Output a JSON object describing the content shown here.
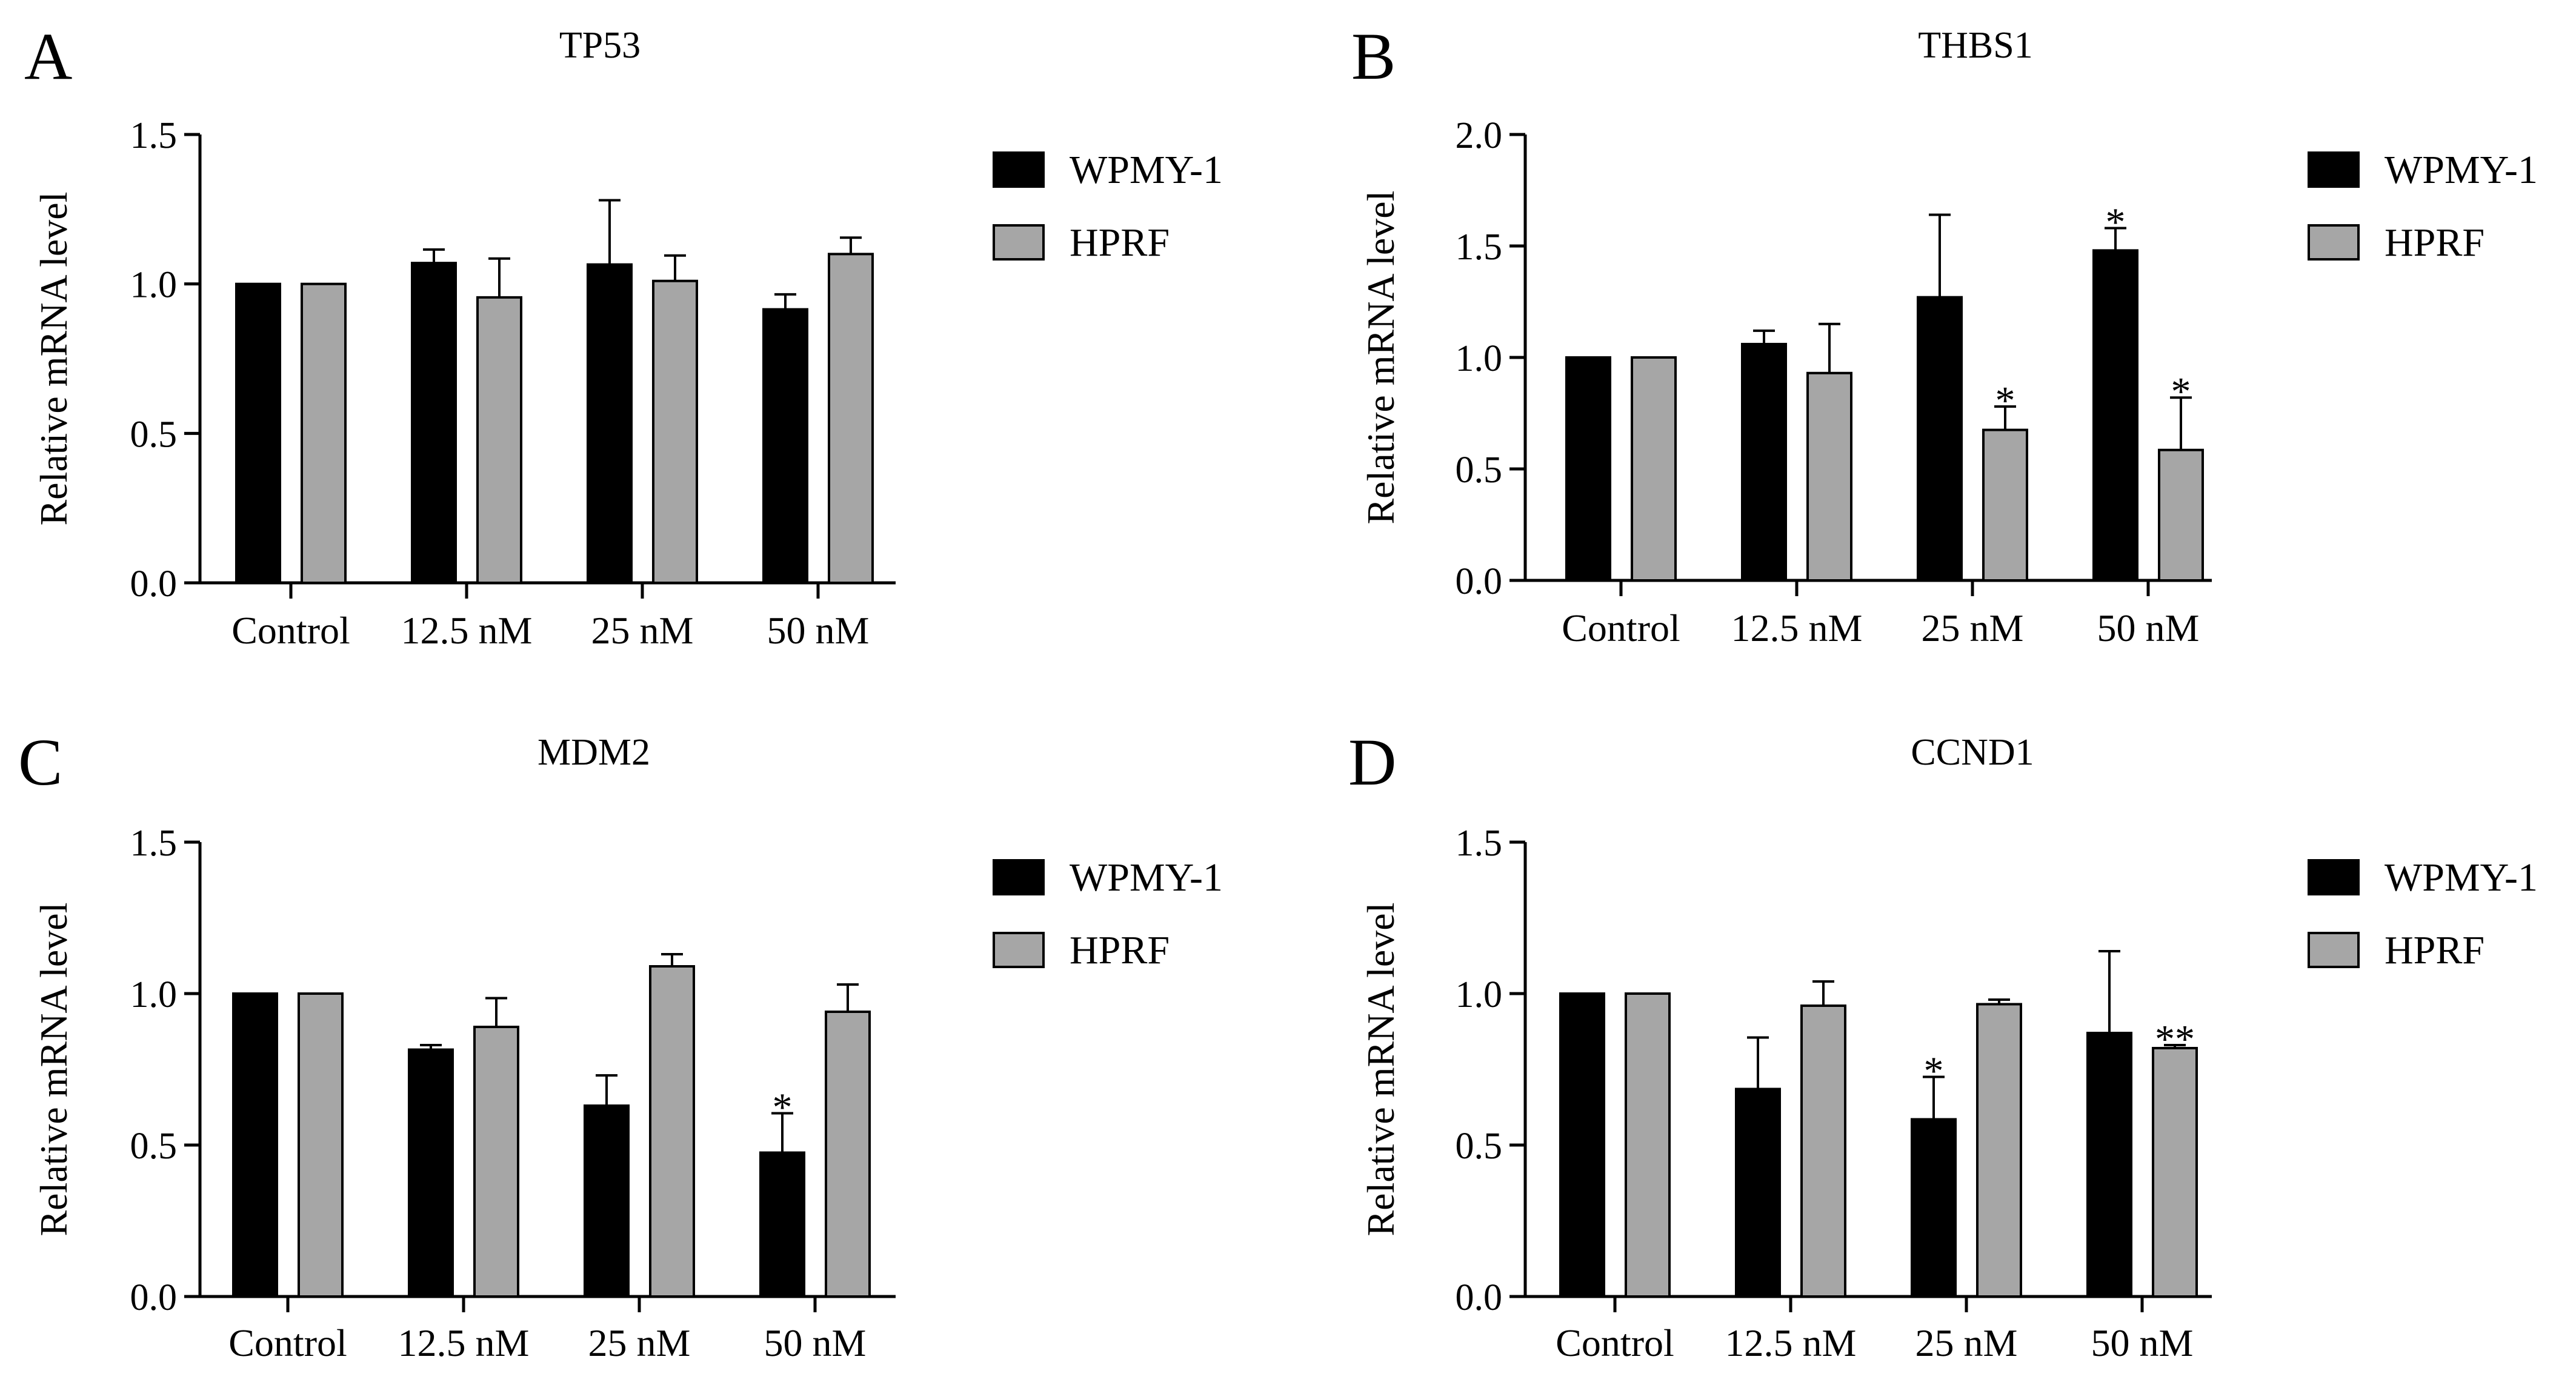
{
  "chart_data": [
    {
      "panel": "A",
      "type": "bar",
      "title": "TP53",
      "ylabel": "Relative mRNA level",
      "xlabel": "",
      "ylim": [
        0,
        1.5
      ],
      "yticks": [
        "0.0",
        "0.5",
        "1.0",
        "1.5"
      ],
      "categories": [
        "Control",
        "12.5 nM",
        "25 nM",
        "50 nM"
      ],
      "legend_position": "right",
      "series": [
        {
          "name": "WPMY-1",
          "color": "#000000",
          "values": [
            1.0,
            1.07,
            1.065,
            0.915
          ],
          "errors": [
            0,
            0.045,
            0.215,
            0.05
          ],
          "sig": [
            "",
            "",
            "",
            ""
          ]
        },
        {
          "name": "HPRF",
          "color": "#a6a6a6",
          "values": [
            1.0,
            0.955,
            1.01,
            1.1
          ],
          "errors": [
            0,
            0.13,
            0.085,
            0.055
          ],
          "sig": [
            "",
            "",
            "",
            ""
          ]
        }
      ]
    },
    {
      "panel": "B",
      "type": "bar",
      "title": "THBS1",
      "ylabel": "Relative mRNA level",
      "xlabel": "",
      "ylim": [
        0,
        2.0
      ],
      "yticks": [
        "0.0",
        "0.5",
        "1.0",
        "1.5",
        "2.0"
      ],
      "categories": [
        "Control",
        "12.5 nM",
        "25 nM",
        "50 nM"
      ],
      "legend_position": "right",
      "series": [
        {
          "name": "WPMY-1",
          "color": "#000000",
          "values": [
            1.0,
            1.06,
            1.27,
            1.48
          ],
          "errors": [
            0,
            0.06,
            0.37,
            0.1
          ],
          "sig": [
            "",
            "",
            "",
            "*"
          ]
        },
        {
          "name": "HPRF",
          "color": "#a6a6a6",
          "values": [
            1.0,
            0.93,
            0.675,
            0.585
          ],
          "errors": [
            0,
            0.22,
            0.105,
            0.235
          ],
          "sig": [
            "",
            "",
            "*",
            "*"
          ]
        }
      ]
    },
    {
      "panel": "C",
      "type": "bar",
      "title": "MDM2",
      "ylabel": "Relative mRNA level",
      "xlabel": "",
      "ylim": [
        0,
        1.5
      ],
      "yticks": [
        "0.0",
        "0.5",
        "1.0",
        "1.5"
      ],
      "categories": [
        "Control",
        "12.5 nM",
        "25 nM",
        "50 nM"
      ],
      "legend_position": "right",
      "series": [
        {
          "name": "WPMY-1",
          "color": "#000000",
          "values": [
            1.0,
            0.815,
            0.63,
            0.475
          ],
          "errors": [
            0,
            0.015,
            0.1,
            0.13
          ],
          "sig": [
            "",
            "",
            "",
            "*"
          ]
        },
        {
          "name": "HPRF",
          "color": "#a6a6a6",
          "values": [
            1.0,
            0.89,
            1.09,
            0.94
          ],
          "errors": [
            0,
            0.095,
            0.04,
            0.09
          ],
          "sig": [
            "",
            "",
            "",
            ""
          ]
        }
      ]
    },
    {
      "panel": "D",
      "type": "bar",
      "title": "CCND1",
      "ylabel": "Relative mRNA level",
      "xlabel": "",
      "ylim": [
        0,
        1.5
      ],
      "yticks": [
        "0.0",
        "0.5",
        "1.0",
        "1.5"
      ],
      "categories": [
        "Control",
        "12.5 nM",
        "25 nM",
        "50 nM"
      ],
      "legend_position": "right",
      "series": [
        {
          "name": "WPMY-1",
          "color": "#000000",
          "values": [
            1.0,
            0.685,
            0.585,
            0.87
          ],
          "errors": [
            0,
            0.17,
            0.14,
            0.27
          ],
          "sig": [
            "",
            "",
            "*",
            ""
          ]
        },
        {
          "name": "HPRF",
          "color": "#a6a6a6",
          "values": [
            1.0,
            0.96,
            0.965,
            0.82
          ],
          "errors": [
            0,
            0.08,
            0.015,
            0.01
          ],
          "sig": [
            "",
            "",
            "",
            "**"
          ]
        }
      ]
    }
  ]
}
